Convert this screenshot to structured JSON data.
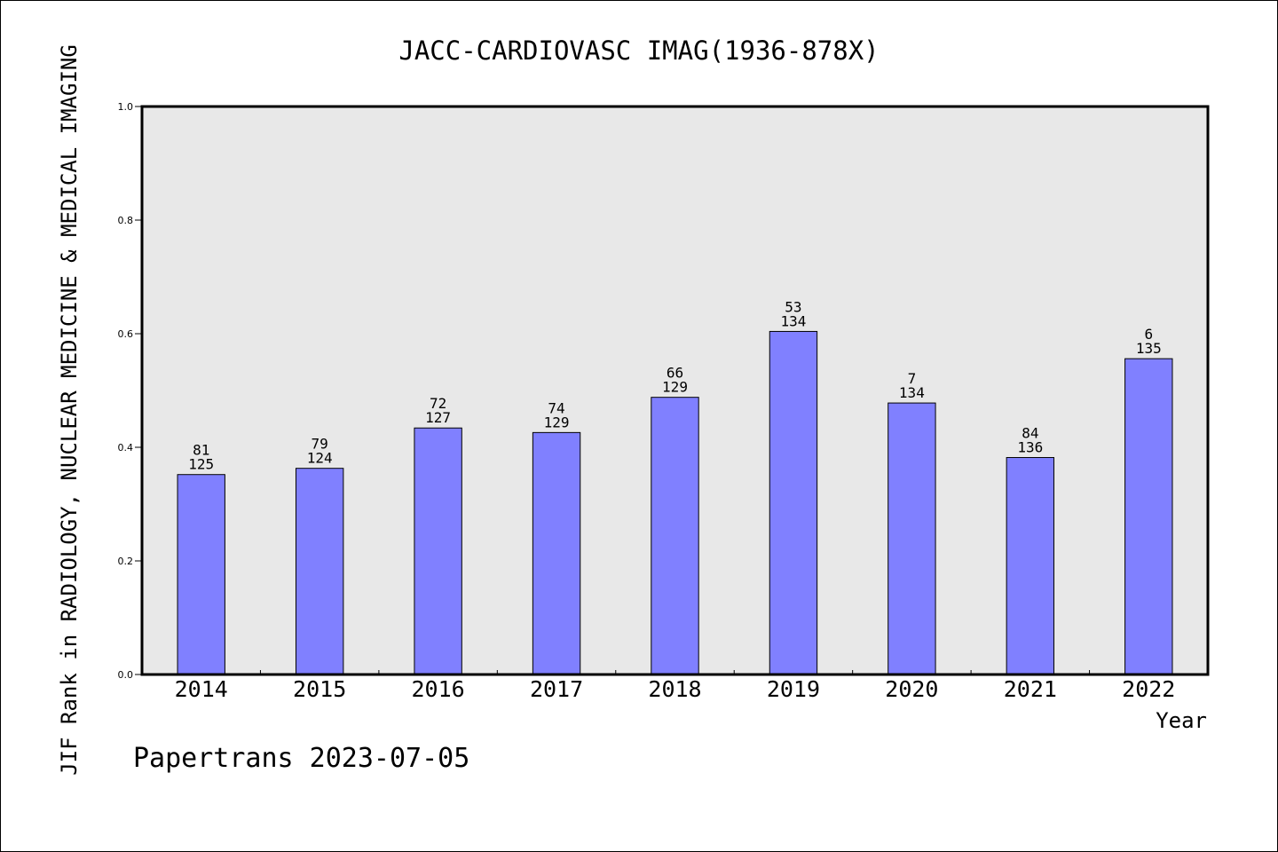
{
  "chart_data": {
    "type": "bar",
    "title": "JACC-CARDIOVASC IMAG(1936-878X)",
    "xlabel": "Year",
    "ylabel": "JIF Rank in RADIOLOGY, NUCLEAR MEDICINE & MEDICAL IMAGING",
    "ylim": [
      0,
      1.0
    ],
    "yticks": [
      "0.0",
      "0.2",
      "0.4",
      "0.6",
      "0.8",
      "1.0"
    ],
    "categories": [
      "2014",
      "2015",
      "2016",
      "2017",
      "2018",
      "2019",
      "2020",
      "2021",
      "2022"
    ],
    "values": [
      0.352,
      0.363,
      0.434,
      0.426,
      0.488,
      0.604,
      0.478,
      0.382,
      0.556
    ],
    "rank": [
      "81",
      "79",
      "72",
      "74",
      "66",
      "53",
      "7",
      "84",
      "6"
    ],
    "total": [
      "125",
      "124",
      "127",
      "129",
      "129",
      "134",
      "134",
      "136",
      "135"
    ],
    "bar_color": "#8080ff",
    "plot_background": "#e8e8e8",
    "grid": false
  },
  "footer": "Papertrans 2023-07-05"
}
